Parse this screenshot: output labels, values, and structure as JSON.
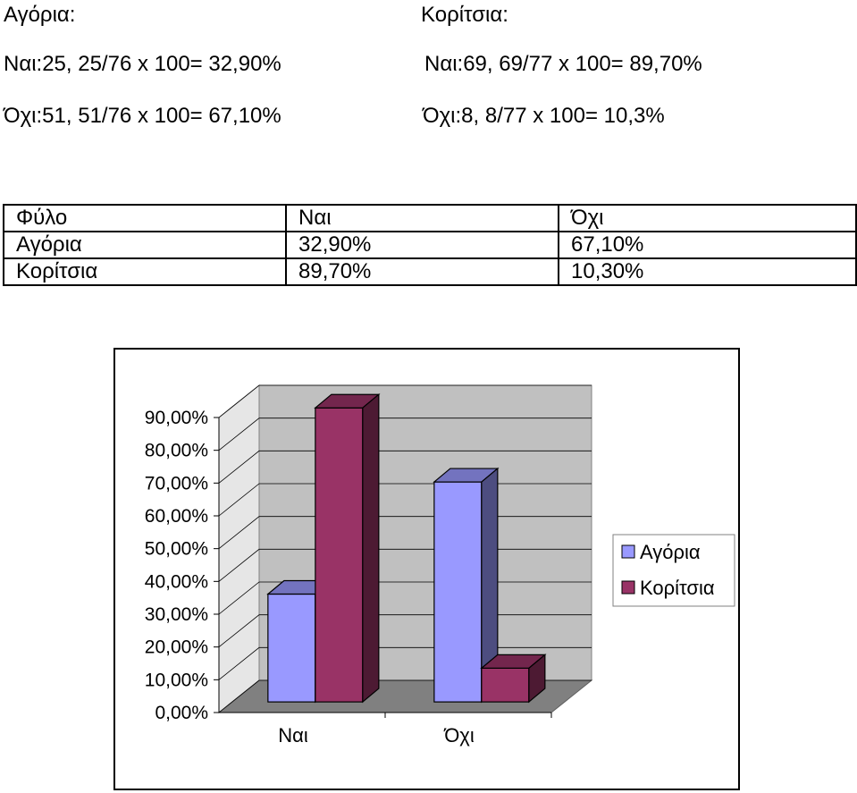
{
  "calc": {
    "boys_heading": "Αγόρια:",
    "girls_heading": "Κορίτσια:",
    "boys_yes": "Ναι:25, 25/76 x 100= 32,90%",
    "boys_no": "Όχι:51, 51/76 x 100= 67,10%",
    "girls_yes": "Ναι:69, 69/77 x 100= 89,70%",
    "girls_no": "Όχι:8, 8/77 x 100= 10,3%"
  },
  "table": {
    "header": [
      "Φύλο",
      "Ναι",
      "Όχι"
    ],
    "rows": [
      [
        "Αγόρια",
        "32,90%",
        "67,10%"
      ],
      [
        "Κορίτσια",
        "89,70%",
        "10,30%"
      ]
    ]
  },
  "chart_data": {
    "type": "bar",
    "categories": [
      "Ναι",
      "Όχι"
    ],
    "series": [
      {
        "name": "Αγόρια",
        "values": [
          32.9,
          67.1
        ],
        "color": "#9999ff"
      },
      {
        "name": "Κορίτσια",
        "values": [
          89.7,
          10.3
        ],
        "color": "#993366"
      }
    ],
    "ytick_labels": [
      "0,00%",
      "10,00%",
      "20,00%",
      "30,00%",
      "40,00%",
      "50,00%",
      "60,00%",
      "70,00%",
      "80,00%",
      "90,00%"
    ],
    "ylim": [
      0,
      90
    ],
    "grid": true,
    "legend_position": "right",
    "style": "3d-clustered-column"
  }
}
